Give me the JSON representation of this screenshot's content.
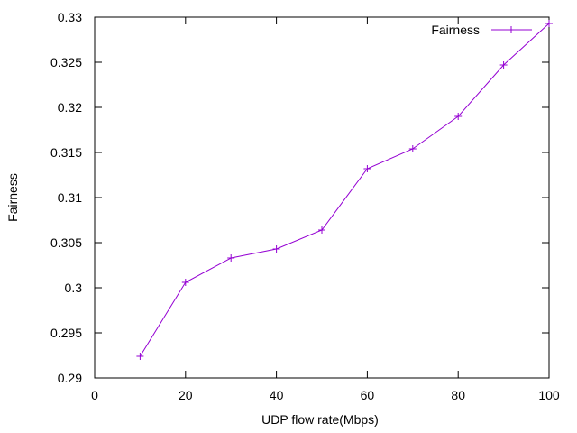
{
  "chart_data": {
    "type": "line",
    "title": "",
    "xlabel": "UDP flow rate(Mbps)",
    "ylabel": "Fairness",
    "xlim": [
      0,
      100
    ],
    "ylim": [
      0.29,
      0.33
    ],
    "x_ticks": [
      "0",
      "20",
      "40",
      "60",
      "80",
      "100"
    ],
    "y_ticks": [
      "0.29",
      "0.295",
      "0.3",
      "0.305",
      "0.31",
      "0.315",
      "0.32",
      "0.325",
      "0.33"
    ],
    "x_tick_values": [
      0,
      20,
      40,
      60,
      80,
      100
    ],
    "y_tick_values": [
      0.29,
      0.295,
      0.3,
      0.305,
      0.31,
      0.315,
      0.32,
      0.325,
      0.33
    ],
    "grid": false,
    "legend_position": "top-right",
    "series": [
      {
        "name": "Fairness",
        "color": "#9400d3",
        "marker": "plus",
        "x": [
          10,
          20,
          30,
          40,
          50,
          60,
          70,
          80,
          90,
          100
        ],
        "y": [
          0.2924,
          0.3006,
          0.3033,
          0.3043,
          0.3064,
          0.3132,
          0.3154,
          0.319,
          0.3247,
          0.3293
        ]
      }
    ]
  }
}
